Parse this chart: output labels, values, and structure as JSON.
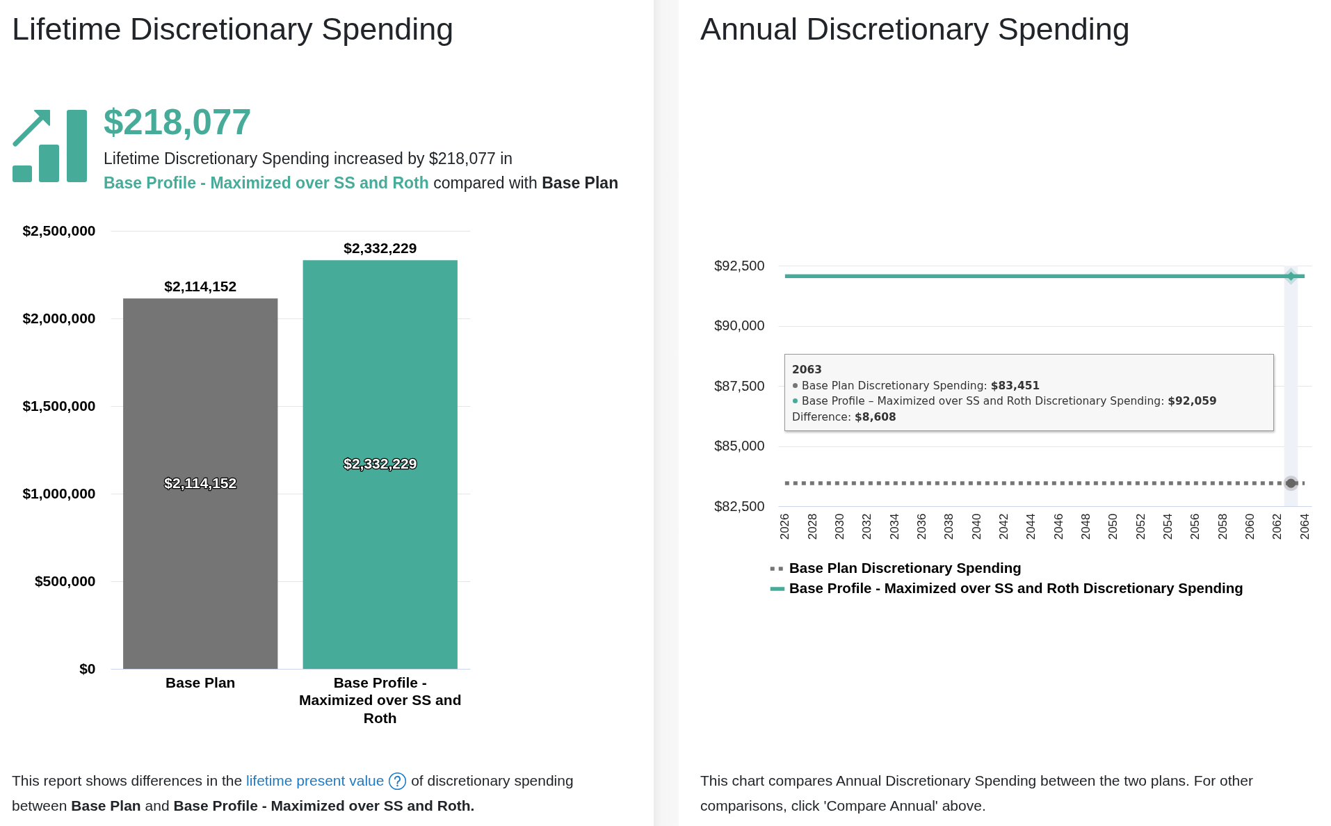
{
  "chart_data": [
    {
      "type": "bar",
      "title": "Lifetime Discretionary Spending",
      "subtitle": "$218,077",
      "annotations": [
        "Lifetime Discretionary Spending increased by $218,077 in",
        "Base Profile - Maximized over SS and Roth",
        "compared with",
        "Base Plan",
        "This report shows differences in the",
        "lifetime present value",
        "of discretionary spending",
        "between",
        "Base Plan",
        "and",
        "Base Profile - Maximized over SS and Roth."
      ],
      "categories": [
        "Base Plan",
        "Base Profile - Maximized over SS and Roth"
      ],
      "values": [
        2114152,
        2332229
      ],
      "colors": [
        "#757575",
        "#47ab9a"
      ],
      "value_labels": [
        "$2,114,152",
        "$2,332,229"
      ],
      "ylim": [
        0,
        2500000
      ],
      "yticks": [
        {
          "value": 0,
          "label": "$0"
        },
        {
          "value": 500000,
          "label": "$500,000"
        },
        {
          "value": 1000000,
          "label": "$1,000,000"
        },
        {
          "value": 1500000,
          "label": "$1,500,000"
        },
        {
          "value": 2000000,
          "label": "$2,000,000"
        },
        {
          "value": 2500000,
          "label": "$2,500,000"
        }
      ],
      "grid": "y"
    },
    {
      "type": "line",
      "title": "Annual Discretionary Spending",
      "annotations": [
        "2063",
        "Base Plan Discretionary Spending: $83,451",
        "Base Profile – Maximized over SS and Roth Discretionary Spending: $92,059",
        "Difference: $8,608",
        "This chart compares Annual Discretionary Spending between the two plans. For other comparisons, click 'Compare Annual' above."
      ],
      "x": [
        2026,
        2064
      ],
      "series": [
        {
          "name": "Base Plan Discretionary Spending",
          "color": "#757575",
          "line_style": "dotted",
          "values": [
            83451,
            83451
          ]
        },
        {
          "name": "Base Profile - Maximized over SS and Roth Discretionary Spending",
          "color": "#47ab9a",
          "line_style": "solid",
          "values": [
            92059,
            92059
          ]
        },
        {
          "type": "scatter",
          "color": "#666666",
          "marker": "circle",
          "x": [
            2063
          ],
          "values": [
            83451
          ]
        },
        {
          "type": "scatter",
          "color": "#47ab9a",
          "marker": "diamond",
          "x": [
            2063
          ],
          "values": [
            92059
          ]
        }
      ],
      "xlim": [
        2025.5,
        2064.5
      ],
      "xticks": [
        2026,
        2028,
        2030,
        2032,
        2034,
        2036,
        2038,
        2040,
        2042,
        2044,
        2046,
        2048,
        2050,
        2052,
        2054,
        2056,
        2058,
        2060,
        2062,
        2064
      ],
      "ylim": [
        82500,
        92500
      ],
      "yticks": [
        {
          "value": 82500,
          "label": "$82,500"
        },
        {
          "value": 85000,
          "label": "$85,000"
        },
        {
          "value": 87500,
          "label": "$87,500"
        },
        {
          "value": 90000,
          "label": "$90,000"
        },
        {
          "value": 92500,
          "label": "$92,500"
        }
      ],
      "bands": [
        {
          "axis": "x",
          "from": 2062.5,
          "to": 2063.5,
          "color": "#eff1f8"
        }
      ],
      "grid": "y",
      "legend": "bottom",
      "marker": "none"
    }
  ]
}
